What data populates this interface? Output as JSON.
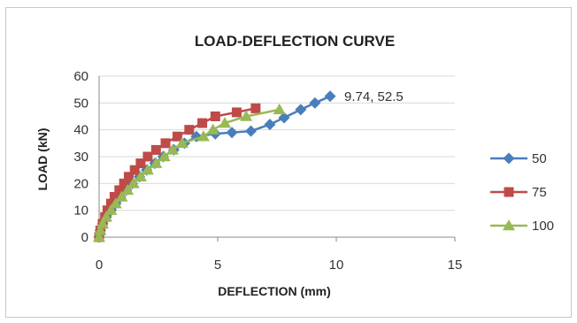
{
  "chart_data": {
    "type": "scatter",
    "title": "LOAD-DEFLECTION CURVE",
    "xlabel": "DEFLECTION (mm)",
    "ylabel": "LOAD (kN)",
    "xlim": [
      0,
      15
    ],
    "ylim": [
      0,
      60
    ],
    "xticks": [
      "0",
      "5",
      "10",
      "15"
    ],
    "yticks": [
      "0",
      "10",
      "20",
      "30",
      "40",
      "50",
      "60"
    ],
    "grid": "horizontal",
    "legend_position": "right",
    "series": [
      {
        "name": "50",
        "color": "#4a7ebb",
        "marker": "diamond",
        "points": [
          [
            0,
            0
          ],
          [
            0.05,
            2.5
          ],
          [
            0.15,
            5
          ],
          [
            0.3,
            7.5
          ],
          [
            0.5,
            10
          ],
          [
            0.7,
            12.5
          ],
          [
            0.9,
            15
          ],
          [
            1.15,
            17.5
          ],
          [
            1.4,
            20
          ],
          [
            1.7,
            22.5
          ],
          [
            2.0,
            25
          ],
          [
            2.35,
            27.5
          ],
          [
            2.7,
            30
          ],
          [
            3.15,
            32.5
          ],
          [
            3.6,
            35
          ],
          [
            4.1,
            37.5
          ],
          [
            4.9,
            38.5
          ],
          [
            5.6,
            39
          ],
          [
            6.4,
            39.5
          ],
          [
            7.2,
            42
          ],
          [
            7.8,
            44.5
          ],
          [
            8.5,
            47.5
          ],
          [
            9.1,
            50
          ],
          [
            9.74,
            52.5
          ]
        ]
      },
      {
        "name": "75",
        "color": "#be4b48",
        "marker": "square",
        "points": [
          [
            0,
            0
          ],
          [
            0.05,
            2.5
          ],
          [
            0.15,
            5
          ],
          [
            0.25,
            7.5
          ],
          [
            0.35,
            10
          ],
          [
            0.5,
            12.5
          ],
          [
            0.65,
            15
          ],
          [
            0.85,
            17.5
          ],
          [
            1.05,
            20
          ],
          [
            1.25,
            22.5
          ],
          [
            1.5,
            25
          ],
          [
            1.75,
            27.5
          ],
          [
            2.05,
            30
          ],
          [
            2.4,
            32.5
          ],
          [
            2.8,
            35
          ],
          [
            3.3,
            37.5
          ],
          [
            3.8,
            40
          ],
          [
            4.35,
            42.5
          ],
          [
            4.9,
            45
          ],
          [
            5.8,
            46.5
          ],
          [
            6.6,
            48
          ]
        ]
      },
      {
        "name": "100",
        "color": "#98b954",
        "marker": "triangle",
        "points": [
          [
            0,
            0
          ],
          [
            0.05,
            2.5
          ],
          [
            0.15,
            5
          ],
          [
            0.3,
            7.5
          ],
          [
            0.5,
            10
          ],
          [
            0.7,
            12.5
          ],
          [
            0.95,
            15
          ],
          [
            1.2,
            17.5
          ],
          [
            1.45,
            20
          ],
          [
            1.75,
            22.5
          ],
          [
            2.05,
            25
          ],
          [
            2.4,
            27.5
          ],
          [
            2.75,
            30
          ],
          [
            3.1,
            32.5
          ],
          [
            3.5,
            35
          ],
          [
            4.4,
            37.5
          ],
          [
            4.8,
            40
          ],
          [
            5.3,
            42.5
          ],
          [
            6.2,
            45
          ],
          [
            7.6,
            47.5
          ]
        ]
      }
    ],
    "annotations": [
      {
        "text": "9.74, 52.5",
        "x": 9.74,
        "y": 52.5,
        "series": "50"
      }
    ]
  }
}
